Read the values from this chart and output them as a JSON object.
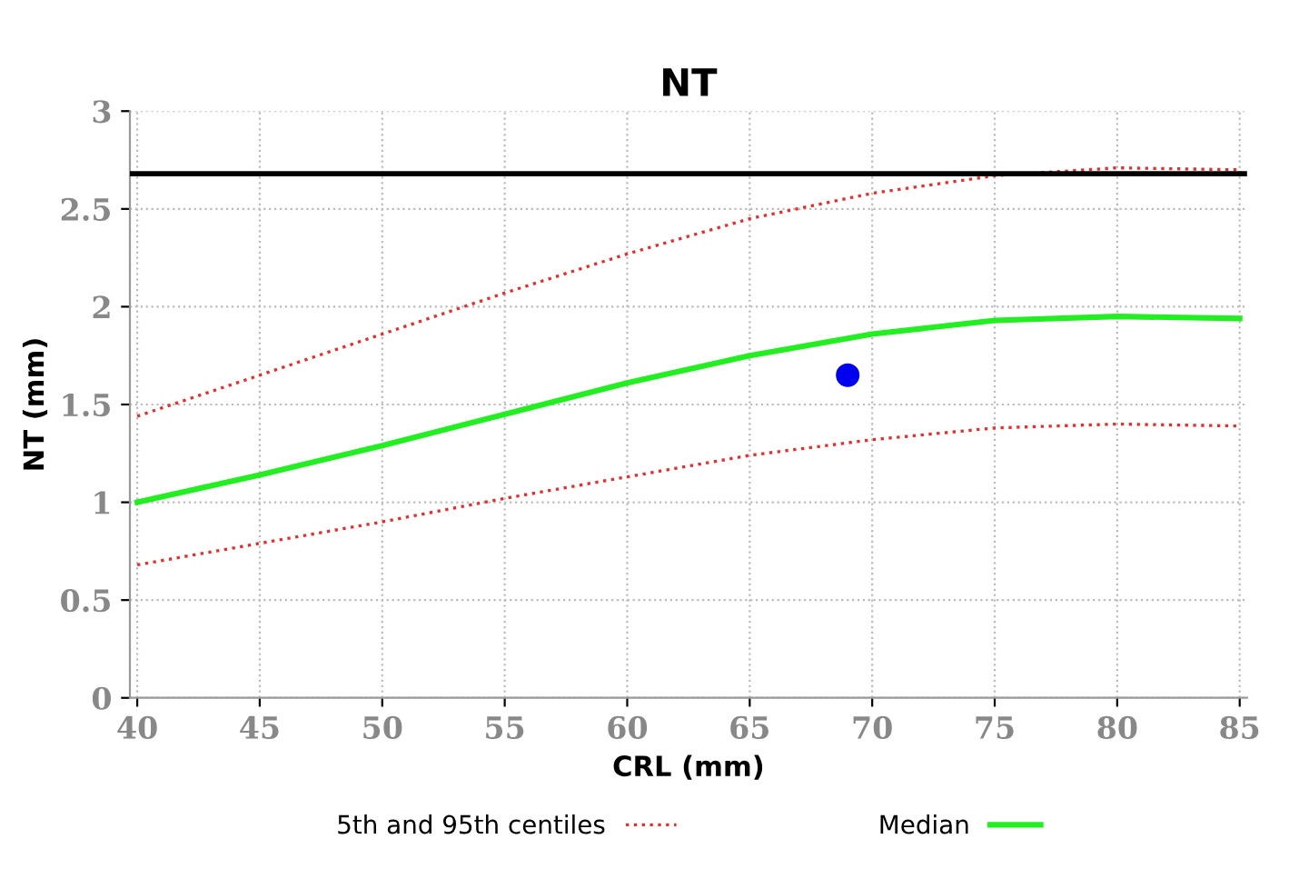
{
  "chart_data": {
    "type": "line",
    "title": "NT",
    "xlabel": "CRL (mm)",
    "ylabel": "NT (mm)",
    "x": [
      40,
      45,
      50,
      55,
      60,
      65,
      70,
      75,
      80,
      85
    ],
    "series": [
      {
        "name": "5th and 95th centiles",
        "color": "#e03030",
        "line_style": "dotted",
        "values": [
          1.44,
          1.65,
          1.86,
          2.07,
          2.27,
          2.45,
          2.58,
          2.67,
          2.71,
          2.7
        ]
      },
      {
        "color": "#e03030",
        "line_style": "dotted",
        "values": [
          0.68,
          0.79,
          0.9,
          1.02,
          1.13,
          1.24,
          1.32,
          1.38,
          1.4,
          1.39
        ]
      },
      {
        "name": "Median",
        "color": "#22ee22",
        "line_style": "solid",
        "values": [
          1.0,
          1.14,
          1.29,
          1.45,
          1.61,
          1.75,
          1.86,
          1.93,
          1.95,
          1.94
        ]
      },
      {
        "type": "scatter",
        "color": "#0000ee",
        "marker": "circle",
        "x": [
          69
        ],
        "values": [
          1.65
        ]
      }
    ],
    "ref_lines": [
      {
        "axis": "y",
        "value": 2.68,
        "color": "#000000",
        "line_style": "solid"
      }
    ],
    "xlim": [
      39.7,
      85.3
    ],
    "ylim": [
      0,
      3
    ],
    "xticks": [
      40,
      45,
      50,
      55,
      60,
      65,
      70,
      75,
      80,
      85
    ],
    "yticks": [
      0,
      0.5,
      1,
      1.5,
      2,
      2.5,
      3
    ],
    "grid": true,
    "legend": "bottom"
  }
}
